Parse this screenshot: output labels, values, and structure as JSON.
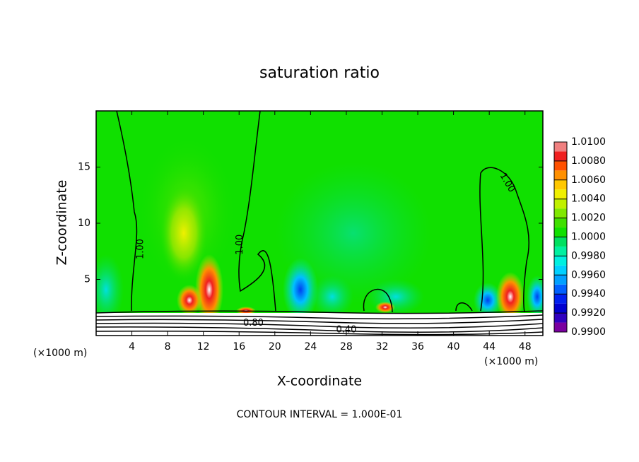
{
  "chart_data": {
    "type": "contour",
    "title": "saturation ratio",
    "x_label": "X-coordinate",
    "y_label": "Z-coordinate",
    "unit_labels": [
      "(×1000 m)",
      "(×1000 m)"
    ],
    "footer": "CONTOUR INTERVAL = 1.000E-01",
    "xlim": [
      0,
      50
    ],
    "ylim": [
      0,
      20
    ],
    "xticks": [
      4,
      8,
      12,
      16,
      20,
      24,
      28,
      32,
      36,
      40,
      44,
      48
    ],
    "yticks": [
      5,
      10,
      15
    ],
    "contour_labels": [
      {
        "text": "1.00",
        "x": 5.0,
        "y": 7.7
      },
      {
        "text": "1.00",
        "x": 16.1,
        "y": 8.1
      },
      {
        "text": "1.00",
        "x": 46.0,
        "y": 13.6
      },
      {
        "text": "0.80",
        "x": 17.6,
        "y": 1.1
      },
      {
        "text": "0.40",
        "x": 28.0,
        "y": 0.5
      }
    ],
    "colorbar": {
      "clim": [
        0.99,
        1.01
      ],
      "colors": [
        "#7a00a0",
        "#3000c0",
        "#0000d0",
        "#0020f0",
        "#0060ff",
        "#00a0ff",
        "#00d0ff",
        "#00f0e0",
        "#00f0a0",
        "#00e060",
        "#10e000",
        "#40e000",
        "#80e800",
        "#c0f000",
        "#f0f000",
        "#ffc800",
        "#ff9000",
        "#ff5000",
        "#f02020",
        "#f08080"
      ],
      "ticks": [
        {
          "value": 0.99,
          "label": "0.9900"
        },
        {
          "value": 0.992,
          "label": "0.9920"
        },
        {
          "value": 0.994,
          "label": "0.9940"
        },
        {
          "value": 0.996,
          "label": "0.9960"
        },
        {
          "value": 0.998,
          "label": "0.9980"
        },
        {
          "value": 1.0,
          "label": "1.0000"
        },
        {
          "value": 1.002,
          "label": "1.0020"
        },
        {
          "value": 1.004,
          "label": "1.0040"
        },
        {
          "value": 1.006,
          "label": "1.0060"
        },
        {
          "value": 1.008,
          "label": "1.0080"
        },
        {
          "value": 1.01,
          "label": "1.0100"
        }
      ]
    }
  }
}
